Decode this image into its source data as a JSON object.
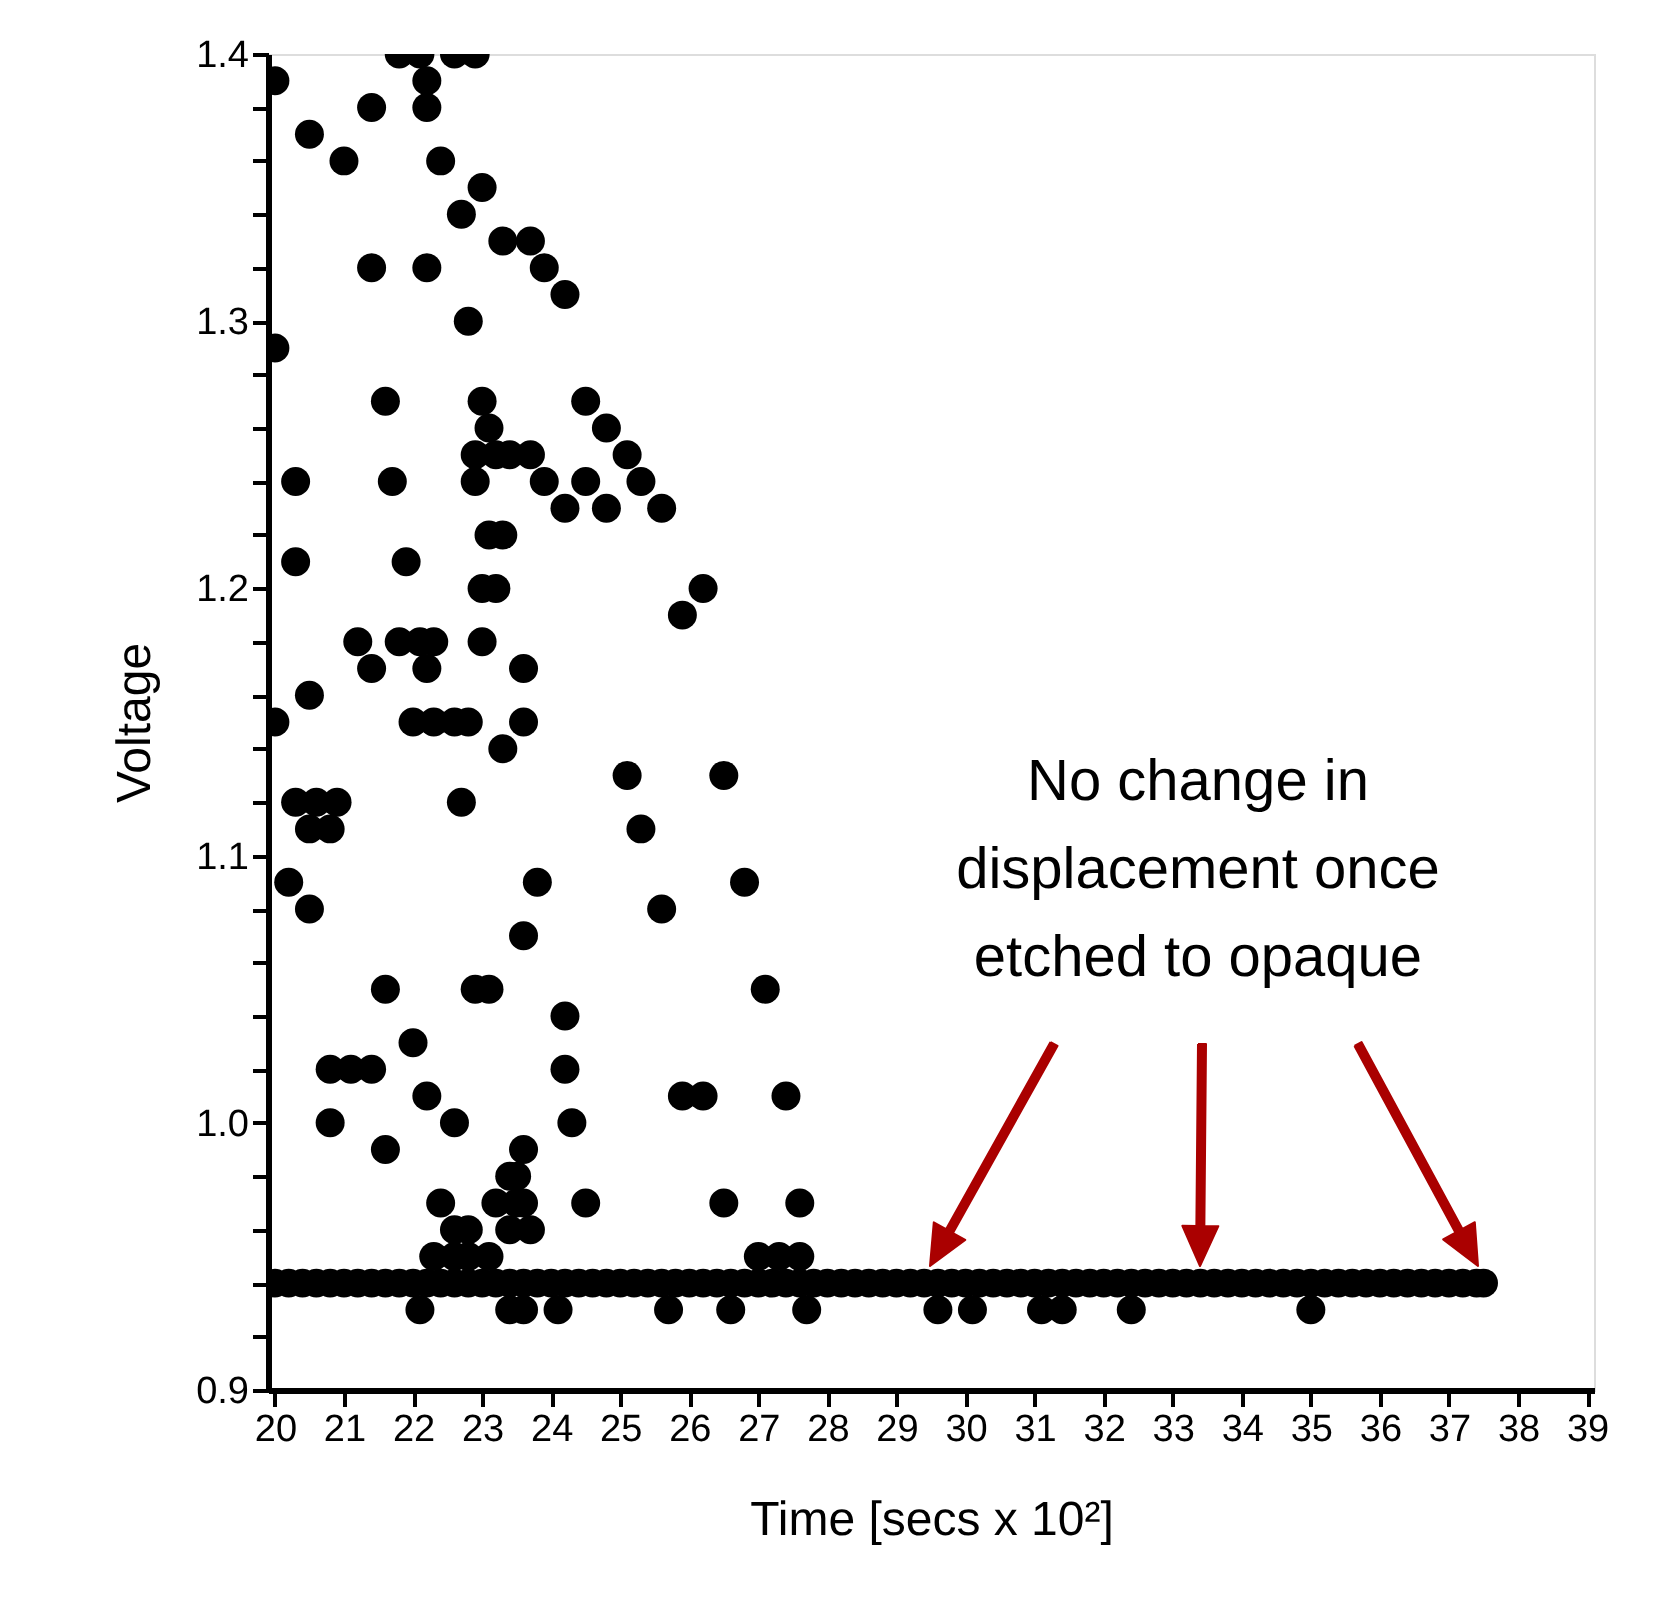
{
  "chart_data": {
    "type": "scatter",
    "xlabel": "Time [secs x 10²]",
    "ylabel": "Voltage",
    "xlim": [
      19.9,
      39.1
    ],
    "ylim": [
      0.9,
      1.4
    ],
    "xticks": [
      20,
      21,
      22,
      23,
      24,
      25,
      26,
      27,
      28,
      29,
      30,
      31,
      32,
      33,
      34,
      35,
      36,
      37,
      38,
      39
    ],
    "yticks": [
      0.9,
      {
        "value": 0.92,
        "label": null
      },
      {
        "value": 0.94,
        "label": null
      },
      {
        "value": 0.96,
        "label": null
      },
      {
        "value": 0.98,
        "label": null
      },
      {
        "value": 1.0,
        "label": "1.0"
      },
      {
        "value": 1.02,
        "label": null
      },
      {
        "value": 1.04,
        "label": null
      },
      {
        "value": 1.06,
        "label": null
      },
      {
        "value": 1.08,
        "label": null
      },
      1.1,
      {
        "value": 1.12,
        "label": null
      },
      {
        "value": 1.14,
        "label": null
      },
      {
        "value": 1.16,
        "label": null
      },
      {
        "value": 1.18,
        "label": null
      },
      1.2,
      {
        "value": 1.22,
        "label": null
      },
      {
        "value": 1.24,
        "label": null
      },
      {
        "value": 1.26,
        "label": null
      },
      {
        "value": 1.28,
        "label": null
      },
      1.3,
      {
        "value": 1.32,
        "label": null
      },
      {
        "value": 1.34,
        "label": null
      },
      {
        "value": 1.36,
        "label": null
      },
      {
        "value": 1.38,
        "label": null
      },
      1.4
    ],
    "grid": false,
    "marker": "circle",
    "annotations": [
      "No change in\ndisplacement once\netched to opaque"
    ],
    "series": [
      {
        "color": "#000000",
        "x": [
          20.0,
          20.0,
          20.0,
          20.3,
          20.3,
          20.2,
          20.3,
          20.5,
          20.5,
          20.5,
          20.5,
          20.6,
          20.9,
          20.8,
          21.0,
          20.8,
          21.1,
          21.4,
          20.8,
          21.4,
          21.2,
          21.4,
          21.4,
          21.6,
          21.7,
          21.6,
          21.6,
          21.8,
          22.1,
          22.6,
          22.9,
          22.2,
          22.2,
          21.8,
          22.1,
          22.3,
          21.9,
          22.0,
          22.0,
          22.2,
          22.2,
          22.2,
          22.3,
          22.4,
          22.4,
          22.6,
          22.6,
          22.8,
          22.7,
          22.7,
          22.8,
          22.9,
          22.9,
          23.1,
          22.9,
          23.1,
          23.0,
          23.0,
          23.0,
          23.1,
          23.3,
          23.0,
          23.2,
          23.2,
          23.4,
          23.7,
          23.3,
          23.7,
          23.3,
          23.6,
          23.6,
          23.6,
          23.8,
          23.9,
          23.9,
          24.2,
          24.2,
          24.2,
          24.2,
          24.3,
          24.5,
          24.5,
          24.5,
          24.8,
          24.8,
          25.1,
          25.1,
          25.3,
          25.3,
          25.6,
          25.6,
          25.9,
          25.9,
          26.2,
          26.2,
          26.5,
          26.5,
          26.8,
          27.1,
          27.4,
          27.6,
          22.3,
          22.6,
          22.8,
          23.1,
          23.4,
          22.6,
          22.8,
          23.2,
          23.6,
          23.5,
          23.6,
          23.4,
          23.7,
          23.5,
          27.0,
          27.3,
          27.6,
          22.1,
          23.4,
          23.6,
          24.1,
          25.7,
          26.6,
          27.7,
          29.6,
          30.1,
          31.1,
          31.4,
          32.4,
          35.0
        ],
        "values": [
          1.39,
          1.29,
          1.15,
          1.24,
          1.21,
          1.09,
          1.12,
          1.16,
          1.11,
          1.08,
          1.37,
          1.12,
          1.12,
          1.11,
          1.36,
          1.02,
          1.02,
          1.02,
          1.0,
          1.32,
          1.18,
          1.17,
          1.38,
          1.27,
          1.24,
          1.05,
          0.99,
          1.4,
          1.4,
          1.4,
          1.4,
          1.38,
          1.39,
          1.18,
          1.18,
          1.18,
          1.21,
          1.15,
          1.03,
          1.32,
          1.17,
          1.01,
          1.15,
          1.36,
          0.97,
          1.0,
          1.15,
          1.15,
          1.34,
          1.12,
          1.3,
          1.25,
          1.24,
          1.26,
          1.05,
          1.05,
          1.35,
          1.27,
          1.2,
          1.22,
          1.22,
          1.18,
          1.2,
          1.25,
          1.25,
          1.25,
          1.33,
          1.33,
          1.14,
          1.07,
          1.17,
          1.15,
          1.09,
          1.32,
          1.24,
          1.31,
          1.23,
          1.04,
          1.02,
          1.0,
          0.97,
          1.27,
          1.24,
          1.26,
          1.23,
          1.25,
          1.13,
          1.11,
          1.24,
          1.23,
          1.08,
          1.19,
          1.01,
          1.2,
          1.01,
          1.13,
          0.97,
          1.09,
          1.05,
          1.01,
          0.97,
          0.95,
          0.95,
          0.95,
          0.95,
          0.96,
          0.96,
          0.96,
          0.97,
          0.97,
          0.98,
          0.99,
          0.98,
          0.96,
          0.97,
          0.95,
          0.95,
          0.95,
          0.93,
          0.93,
          0.93,
          0.93,
          0.93,
          0.93,
          0.93,
          0.93,
          0.93,
          0.93,
          0.93,
          0.93,
          0.93
        ]
      },
      {
        "color": "#000000",
        "x": [
          20.0,
          20.2,
          20.4,
          20.6,
          20.8,
          21.0,
          21.2,
          21.4,
          21.6,
          21.8,
          22.0,
          22.2,
          22.4,
          22.6,
          22.8,
          23.0,
          23.2,
          23.4,
          23.6,
          23.8,
          24.0,
          24.2,
          24.4,
          24.6,
          24.8,
          25.0,
          25.2,
          25.4,
          25.6,
          25.8,
          26.0,
          26.2,
          26.4,
          26.6,
          26.8,
          27.0,
          27.2,
          27.4,
          27.6,
          27.8,
          28.0,
          28.2,
          28.4,
          28.6,
          28.8,
          29.0,
          29.2,
          29.4,
          29.6,
          29.8,
          30.0,
          30.2,
          30.4,
          30.6,
          30.8,
          31.0,
          31.2,
          31.4,
          31.6,
          31.8,
          32.0,
          32.2,
          32.4,
          32.6,
          32.8,
          33.0,
          33.2,
          33.4,
          33.6,
          33.8,
          34.0,
          34.2,
          34.4,
          34.6,
          34.8,
          35.0,
          35.2,
          35.4,
          35.6,
          35.8,
          36.0,
          36.2,
          36.4,
          36.6,
          36.8,
          37.0,
          37.2,
          37.4,
          37.5
        ],
        "values": [
          0.94,
          0.94,
          0.94,
          0.94,
          0.94,
          0.94,
          0.94,
          0.94,
          0.94,
          0.94,
          0.94,
          0.94,
          0.94,
          0.94,
          0.94,
          0.94,
          0.94,
          0.94,
          0.94,
          0.94,
          0.94,
          0.94,
          0.94,
          0.94,
          0.94,
          0.94,
          0.94,
          0.94,
          0.94,
          0.94,
          0.94,
          0.94,
          0.94,
          0.94,
          0.94,
          0.94,
          0.94,
          0.94,
          0.94,
          0.94,
          0.94,
          0.94,
          0.94,
          0.94,
          0.94,
          0.94,
          0.94,
          0.94,
          0.94,
          0.94,
          0.94,
          0.94,
          0.94,
          0.94,
          0.94,
          0.94,
          0.94,
          0.94,
          0.94,
          0.94,
          0.94,
          0.94,
          0.94,
          0.94,
          0.94,
          0.94,
          0.94,
          0.94,
          0.94,
          0.94,
          0.94,
          0.94,
          0.94,
          0.94,
          0.94,
          0.94,
          0.94,
          0.94,
          0.94,
          0.94,
          0.94,
          0.94,
          0.94,
          0.94,
          0.94,
          0.94,
          0.94,
          0.94,
          0.94
        ]
      }
    ]
  }
}
